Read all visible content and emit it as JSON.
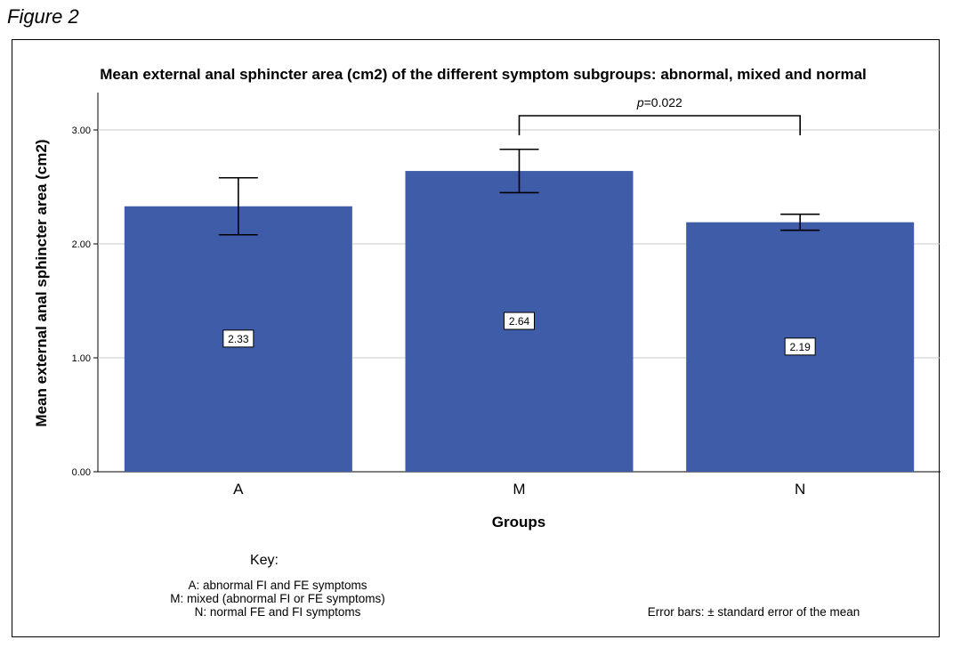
{
  "figure_label": "Figure 2",
  "chart_data": {
    "type": "bar",
    "title": "Mean external anal sphincter area (cm2) of the different symptom subgroups: abnormal, mixed and normal",
    "xlabel": "Groups",
    "ylabel": "Mean external anal sphincter area (cm2)",
    "ylim": [
      0,
      3.3
    ],
    "yticks": [
      {
        "value": 0,
        "label": "0.00"
      },
      {
        "value": 1,
        "label": "1.00"
      },
      {
        "value": 2,
        "label": "2.00"
      },
      {
        "value": 3,
        "label": "3.00"
      }
    ],
    "grid": true,
    "bar_color": "#3f5ca8",
    "categories": [
      "A",
      "M",
      "N"
    ],
    "values": [
      2.33,
      2.64,
      2.19
    ],
    "data_labels": [
      "2.33",
      "2.64",
      "2.19"
    ],
    "error_bars": {
      "lower": [
        2.08,
        2.45,
        2.12
      ],
      "upper": [
        2.58,
        2.83,
        2.26
      ]
    },
    "significance": {
      "from": "M",
      "to": "N",
      "p_symbol": "p",
      "p_value": "=0.022"
    }
  },
  "key": {
    "title": "Key:",
    "lines": [
      "A: abnormal FI and FE symptoms",
      "M: mixed (abnormal FI or FE symptoms)",
      "N: normal FE and FI symptoms"
    ]
  },
  "note": "Error bars: ± standard error of the mean"
}
